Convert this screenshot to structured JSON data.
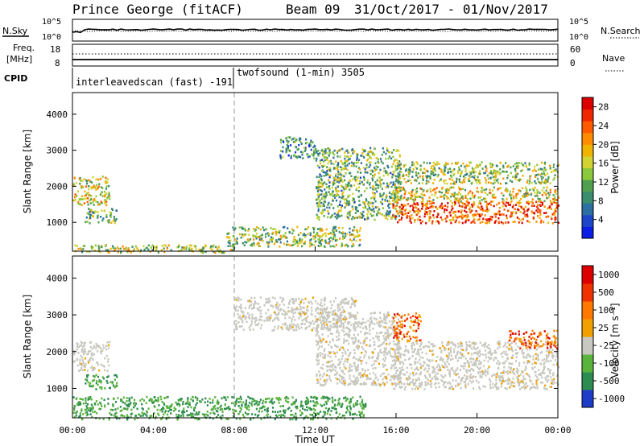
{
  "header": {
    "station": "Prince George (fitACF)",
    "beam": "Beam 09",
    "date_range": "31/Oct/2017 - 01/Nov/2017"
  },
  "noise_panel": {
    "left_label": "N.Sky",
    "right_label": "N.Search",
    "left_ticks": [
      "10^5",
      "10^0"
    ],
    "right_ticks": [
      "10^5",
      "10^0"
    ]
  },
  "freq_panel": {
    "left_label_top": "Freq.",
    "left_label_unit": "[MHz]",
    "left_ticks": [
      "18",
      "8"
    ],
    "right_label": "Nave",
    "right_ticks": [
      "60",
      "0"
    ]
  },
  "cpid_panel": {
    "label": "CPID",
    "modes": [
      {
        "name": "interleavedscan (fast) -191",
        "start_hour": 0,
        "end_hour": 8
      },
      {
        "name": "twofsound (1-min) 3505",
        "start_hour": 8,
        "end_hour": 24
      }
    ]
  },
  "chart_data": [
    {
      "type": "heatmap",
      "title": "",
      "xlabel": "",
      "ylabel": "Slant Range [km]",
      "x_range_hours": [
        0,
        24
      ],
      "ylim": [
        200,
        4600
      ],
      "y_ticks": [
        1000,
        2000,
        3000,
        4000
      ],
      "colorbar": {
        "label": "Power [dB]",
        "ticks": [
          4,
          8,
          12,
          16,
          20,
          24,
          28
        ],
        "range": [
          0,
          30
        ],
        "colors": [
          "#0a1ee6",
          "#1e46c8",
          "#2d6fa0",
          "#3c8c6e",
          "#50a050",
          "#8cc83c",
          "#d2d232",
          "#f0b400",
          "#ff8c00",
          "#ff5a00",
          "#f02800",
          "#dc0000"
        ]
      },
      "regions": [
        {
          "hours": [
            0.0,
            1.8
          ],
          "range_km": [
            1500,
            2300
          ],
          "level": 0.55
        },
        {
          "hours": [
            0.6,
            2.2
          ],
          "range_km": [
            1000,
            1400
          ],
          "level": 0.4
        },
        {
          "hours": [
            0.0,
            8.0
          ],
          "range_km": [
            180,
            400
          ],
          "level": 0.5
        },
        {
          "hours": [
            7.6,
            14.2
          ],
          "range_km": [
            350,
            900
          ],
          "level": 0.45
        },
        {
          "hours": [
            10.2,
            12.0
          ],
          "range_km": [
            2800,
            3400
          ],
          "level": 0.3
        },
        {
          "hours": [
            12.0,
            16.2
          ],
          "range_km": [
            1100,
            3100
          ],
          "level": 0.4
        },
        {
          "hours": [
            15.8,
            24.0
          ],
          "range_km": [
            1000,
            1600
          ],
          "level": 0.8
        },
        {
          "hours": [
            15.8,
            24.0
          ],
          "range_km": [
            1600,
            2000
          ],
          "level": 0.55
        },
        {
          "hours": [
            16.0,
            24.0
          ],
          "range_km": [
            2100,
            2700
          ],
          "level": 0.45
        }
      ]
    },
    {
      "type": "heatmap",
      "title": "",
      "xlabel": "Time UT",
      "ylabel": "Slant Range [km]",
      "x_range_hours": [
        0,
        24
      ],
      "x_ticks": [
        "00:00",
        "04:00",
        "08:00",
        "12:00",
        "16:00",
        "20:00",
        "00:00"
      ],
      "ylim": [
        200,
        4600
      ],
      "y_ticks": [
        1000,
        2000,
        3000,
        4000
      ],
      "colorbar": {
        "label": "Velocity [m s⁻¹]",
        "ticks": [
          1000,
          500,
          100,
          25,
          -25,
          -100,
          -500,
          -1000
        ],
        "colors": [
          "#1e3cc8",
          "#2d8c50",
          "#5ab43c",
          "#c8c8c0",
          "#f0a000",
          "#ff7800",
          "#f03200",
          "#dc0000"
        ]
      },
      "regions": [
        {
          "hours": [
            0.0,
            1.8
          ],
          "range_km": [
            1500,
            2300
          ],
          "velocity": "ground"
        },
        {
          "hours": [
            0.6,
            2.2
          ],
          "range_km": [
            1000,
            1400
          ],
          "velocity": "positive"
        },
        {
          "hours": [
            8.0,
            14.0
          ],
          "range_km": [
            2600,
            3500
          ],
          "velocity": "ground"
        },
        {
          "hours": [
            12.0,
            16.2
          ],
          "range_km": [
            1100,
            3100
          ],
          "velocity": "ground"
        },
        {
          "hours": [
            15.8,
            24.0
          ],
          "range_km": [
            1000,
            2300
          ],
          "velocity": "ground"
        },
        {
          "hours": [
            15.8,
            17.2
          ],
          "range_km": [
            2300,
            3100
          ],
          "velocity": "negative"
        },
        {
          "hours": [
            21.5,
            24.0
          ],
          "range_km": [
            2100,
            2600
          ],
          "velocity": "negative"
        },
        {
          "hours": [
            0.0,
            14.5
          ],
          "range_km": [
            180,
            800
          ],
          "velocity": "positive"
        }
      ]
    }
  ]
}
